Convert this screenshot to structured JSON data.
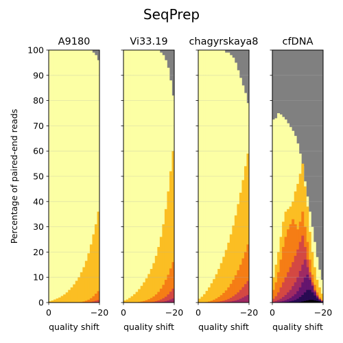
{
  "title": "SeqPrep",
  "chart_data": {
    "type": "area",
    "title": "SeqPrep",
    "ylabel": "Percentage of paired-end reads",
    "xlabel": "quality shift",
    "xlim": [
      0,
      -20
    ],
    "ylim": [
      0,
      100
    ],
    "yticks": [
      0,
      10,
      20,
      30,
      40,
      50,
      60,
      70,
      80,
      90,
      100
    ],
    "xticks": [
      0,
      -20
    ],
    "grid": "horizontal",
    "background_color": "#808080",
    "band_colors": [
      "#fcffa4",
      "#fbbe23",
      "#f57d15",
      "#d44842",
      "#9f2a63",
      "#65156e",
      "#280b53",
      "#000004"
    ],
    "panels": [
      {
        "name": "A9180",
        "x": [
          0,
          -1,
          -2,
          -3,
          -4,
          -5,
          -6,
          -7,
          -8,
          -9,
          -10,
          -11,
          -12,
          -13,
          -14,
          -15,
          -16,
          -17,
          -18,
          -19,
          -20
        ],
        "series": [
          {
            "values": [
              100,
              100,
              100,
              100,
              100,
              100,
              100,
              100,
              100,
              100,
              100,
              100,
              100,
              100,
              100,
              100,
              100,
              100,
              99,
              98,
              96
            ]
          },
          {
            "values": [
              0.5,
              0.8,
              1.2,
              1.6,
              2,
              2.6,
              3.2,
              4,
              5,
              6,
              7.2,
              8.6,
              10,
              12,
              14,
              16.5,
              19.5,
              23,
              27,
              31,
              36
            ]
          },
          {
            "values": [
              0,
              0,
              0,
              0,
              0,
              0,
              0,
              0,
              0,
              0,
              0,
              0,
              0.1,
              0.2,
              0.4,
              0.7,
              1.1,
              1.7,
              2.5,
              3.5,
              4.5
            ]
          },
          {
            "values": [
              0,
              0,
              0,
              0,
              0,
              0,
              0,
              0,
              0,
              0,
              0,
              0,
              0,
              0,
              0,
              0,
              0.1,
              0.2,
              0.4,
              0.7,
              1
            ]
          }
        ]
      },
      {
        "name": "Vi33.19",
        "x": [
          0,
          -1,
          -2,
          -3,
          -4,
          -5,
          -6,
          -7,
          -8,
          -9,
          -10,
          -11,
          -12,
          -13,
          -14,
          -15,
          -16,
          -17,
          -18,
          -19,
          -20
        ],
        "series": [
          {
            "values": [
              100,
              100,
              100,
              100,
              100,
              100,
              100,
              100,
              100,
              100,
              100,
              100,
              100,
              100,
              100,
              99,
              98,
              96,
              93,
              88,
              82
            ]
          },
          {
            "values": [
              0.8,
              1.2,
              1.8,
              2.5,
              3.3,
              4.2,
              5.3,
              6.6,
              8,
              9.6,
              11.3,
              13.3,
              15.6,
              18.5,
              22,
              26,
              31,
              37,
              44,
              52,
              60
            ]
          },
          {
            "values": [
              0,
              0,
              0,
              0,
              0,
              0.1,
              0.2,
              0.4,
              0.6,
              0.9,
              1.3,
              1.8,
              2.4,
              3.2,
              4.2,
              5.5,
              7,
              9,
              11,
              13.5,
              16
            ]
          },
          {
            "values": [
              0,
              0,
              0,
              0,
              0,
              0,
              0,
              0,
              0,
              0,
              0.1,
              0.2,
              0.3,
              0.5,
              0.8,
              1.2,
              1.7,
              2.3,
              3.2,
              4.3,
              5.5
            ]
          },
          {
            "values": [
              0,
              0,
              0,
              0,
              0,
              0,
              0,
              0,
              0,
              0,
              0,
              0,
              0,
              0,
              0.1,
              0.2,
              0.3,
              0.5,
              0.8,
              1.2,
              1.6
            ]
          }
        ]
      },
      {
        "name": "chagyrskaya8",
        "x": [
          0,
          -1,
          -2,
          -3,
          -4,
          -5,
          -6,
          -7,
          -8,
          -9,
          -10,
          -11,
          -12,
          -13,
          -14,
          -15,
          -16,
          -17,
          -18,
          -19,
          -20
        ],
        "series": [
          {
            "values": [
              100,
              100,
              100,
              100,
              100,
              100,
              100,
              100,
              100,
              100,
              100,
              99,
              99,
              98,
              97,
              95,
              92,
              89,
              86,
              83,
              79
            ]
          },
          {
            "values": [
              1.5,
              2.3,
              3.3,
              4.6,
              6,
              7.6,
              9.3,
              11.2,
              13.3,
              15.6,
              18.1,
              20.8,
              23.7,
              27,
              30.5,
              34.5,
              39,
              43.5,
              48.5,
              54,
              59
            ]
          },
          {
            "values": [
              0,
              0,
              0.1,
              0.2,
              0.4,
              0.7,
              1.1,
              1.6,
              2.2,
              2.9,
              3.8,
              4.8,
              6,
              7.4,
              9,
              10.8,
              12.8,
              15,
              17.5,
              20,
              23
            ]
          },
          {
            "values": [
              0,
              0,
              0,
              0,
              0,
              0,
              0.1,
              0.2,
              0.3,
              0.5,
              0.7,
              1,
              1.4,
              1.9,
              2.5,
              3.2,
              4,
              5,
              6.1,
              7.3,
              8.5
            ]
          },
          {
            "values": [
              0,
              0,
              0,
              0,
              0,
              0,
              0,
              0,
              0,
              0,
              0.1,
              0.2,
              0.3,
              0.4,
              0.6,
              0.8,
              1.1,
              1.5,
              2,
              2.5,
              3
            ]
          }
        ]
      },
      {
        "name": "cfDNA",
        "x": [
          0,
          -1,
          -2,
          -3,
          -4,
          -5,
          -6,
          -7,
          -8,
          -9,
          -10,
          -11,
          -12,
          -13,
          -14,
          -15,
          -16,
          -17,
          -18,
          -19,
          -20
        ],
        "series": [
          {
            "values": [
              72.5,
              73,
              75,
              74.5,
              73.5,
              72.5,
              71,
              69.5,
              68,
              66,
              63,
              59,
              54,
              48,
              42,
              36,
              30,
              24,
              18,
              13,
              9
            ]
          },
          {
            "values": [
              10,
              15,
              20,
              26,
              32,
              36,
              37,
              38,
              40,
              44,
              47,
              51,
              55,
              46,
              38,
              28,
              20,
              14,
              9,
              6,
              3.5
            ]
          },
          {
            "values": [
              5,
              8,
              12,
              17,
              22,
              26,
              29,
              31,
              33,
              31,
              29,
              32,
              36,
              30,
              24,
              17,
              11,
              7,
              4,
              2,
              1
            ]
          },
          {
            "values": [
              1.5,
              2.5,
              4,
              6,
              8,
              10,
              12,
              14,
              16,
              18.5,
              21,
              24,
              26.5,
              22,
              17,
              12,
              8,
              5,
              3,
              1.5,
              0.8
            ]
          },
          {
            "values": [
              0.3,
              0.6,
              1,
              1.5,
              2.2,
              3,
              4,
              5,
              6.5,
              8,
              10,
              12.5,
              15,
              17,
              14,
              10,
              7,
              4.5,
              2.5,
              1.3,
              0.6
            ]
          },
          {
            "values": [
              0,
              0.1,
              0.2,
              0.4,
              0.6,
              0.9,
              1.3,
              1.8,
              2.5,
              3.3,
              4.5,
              6,
              8,
              10,
              11,
              9,
              6.5,
              4,
              2.3,
              1.2,
              0.5
            ]
          },
          {
            "values": [
              0,
              0,
              0,
              0,
              0.1,
              0.2,
              0.3,
              0.5,
              0.7,
              1,
              1.5,
              2.2,
              3,
              4,
              5,
              5,
              4,
              2.8,
              1.6,
              0.8,
              0.3
            ]
          },
          {
            "values": [
              0,
              0,
              0,
              0,
              0,
              0,
              0,
              0,
              0,
              0,
              0.1,
              0.2,
              0.4,
              0.6,
              0.8,
              1,
              1,
              0.8,
              0.6,
              0.4,
              0.2
            ]
          }
        ]
      }
    ]
  }
}
